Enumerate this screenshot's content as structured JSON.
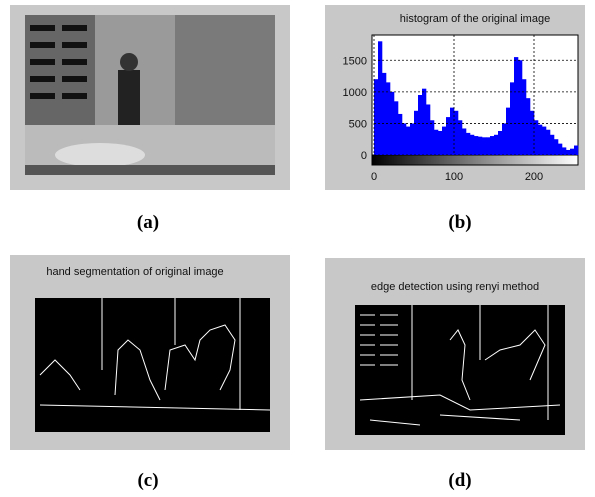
{
  "panels": [
    {
      "caption": "(a)"
    },
    {
      "caption": "(b)"
    },
    {
      "caption": "(c)",
      "title": "hand segmentation of original image"
    },
    {
      "caption": "(d)",
      "title": "edge detection using renyi method"
    }
  ],
  "chart_data": {
    "type": "histogram",
    "title": "histogram of the original image",
    "bins": [
      0,
      5,
      10,
      15,
      20,
      25,
      30,
      35,
      40,
      45,
      50,
      55,
      60,
      65,
      70,
      75,
      80,
      85,
      90,
      95,
      100,
      105,
      110,
      115,
      120,
      125,
      130,
      135,
      140,
      145,
      150,
      155,
      160,
      165,
      170,
      175,
      180,
      185,
      190,
      195,
      200,
      205,
      210,
      215,
      220,
      225,
      230,
      235,
      240,
      245,
      250,
      255
    ],
    "values": [
      1200,
      1800,
      1300,
      1150,
      1000,
      850,
      650,
      500,
      450,
      500,
      700,
      950,
      1050,
      800,
      550,
      400,
      380,
      450,
      600,
      750,
      700,
      550,
      420,
      350,
      320,
      300,
      290,
      280,
      280,
      300,
      320,
      380,
      500,
      750,
      1150,
      1550,
      1500,
      1200,
      900,
      700,
      550,
      480,
      450,
      400,
      320,
      250,
      180,
      120,
      80,
      100,
      150
    ],
    "color": "#0000ff",
    "xlim": [
      0,
      255
    ],
    "ylim": [
      0,
      1900
    ],
    "xticks": [
      0,
      100,
      200
    ],
    "yticks": [
      0,
      500,
      1000,
      1500
    ],
    "grid": true
  }
}
